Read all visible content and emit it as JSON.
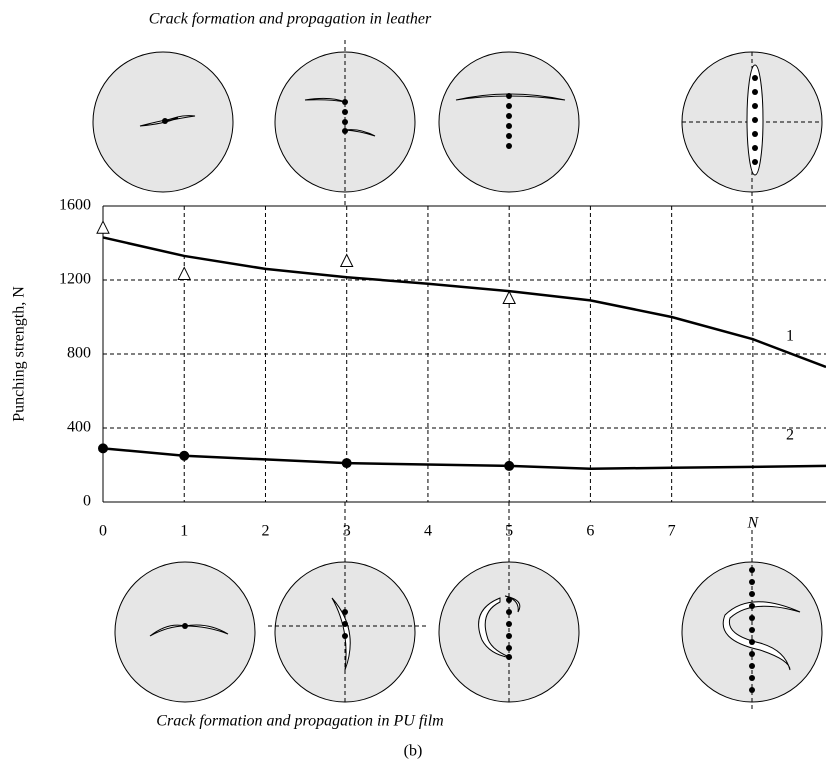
{
  "chart_data": {
    "type": "line",
    "ylabel": "Punching strength, N",
    "xlim": [
      0,
      8.9
    ],
    "ylim": [
      0,
      1600
    ],
    "xticks": [
      0,
      1,
      2,
      3,
      4,
      5,
      6,
      7,
      {
        "value": 8,
        "label": "N"
      }
    ],
    "yticks": [
      0,
      400,
      800,
      1200,
      1600
    ],
    "grid": true,
    "series": [
      {
        "name": "1",
        "color": "#000000",
        "x": [
          0,
          1,
          2,
          3,
          4,
          5,
          6,
          7,
          8,
          8.9
        ],
        "values": [
          1430,
          1330,
          1260,
          1215,
          1180,
          1140,
          1090,
          1000,
          880,
          730
        ]
      },
      {
        "marker": "triangle",
        "color": "#000000",
        "x": [
          0,
          1,
          3,
          5
        ],
        "values": [
          1480,
          1230,
          1300,
          1100
        ]
      },
      {
        "name": "2",
        "color": "#000000",
        "x": [
          0,
          1,
          3,
          5,
          6,
          7,
          8,
          8.9
        ],
        "values": [
          290,
          250,
          210,
          195,
          180,
          185,
          190,
          195
        ]
      },
      {
        "marker": "dot",
        "color": "#000000",
        "x": [
          0,
          1,
          3,
          5
        ],
        "values": [
          290,
          250,
          210,
          195
        ]
      }
    ]
  },
  "figure": {
    "top_text": "Crack formation and propagation in leather",
    "bottom_text": "Crack formation and propagation in PU film",
    "label": "(b)"
  }
}
